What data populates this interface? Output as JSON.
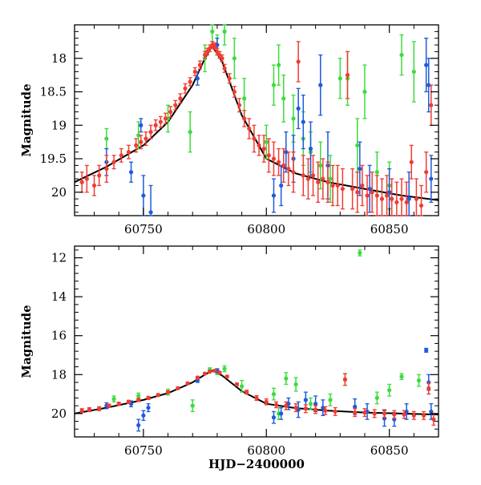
{
  "chart_data": [
    {
      "type": "scatter",
      "panel": "top",
      "xlabel": "",
      "ylabel": "Magnitude",
      "xlim": [
        60722,
        60870
      ],
      "ylim": [
        20.35,
        17.5
      ],
      "y_inverted": true,
      "x_ticks": [
        60750,
        60800,
        60850
      ],
      "x_tick_labels": [
        "60750",
        "60800",
        "60850"
      ],
      "y_ticks": [
        18,
        18.5,
        19,
        19.5,
        20
      ],
      "y_tick_labels": [
        "18",
        "18.5",
        "19",
        "19.5",
        "20"
      ],
      "grid": false,
      "legend": "none",
      "series_colors": {
        "green": "#3cdc3c",
        "blue": "#1e5adc",
        "red": "#f03c32",
        "model": "#000000"
      },
      "model_curve": {
        "x": [
          60722,
          60735,
          60750,
          60760,
          60770,
          60775,
          60778,
          60782,
          60790,
          60800,
          60812,
          60825,
          60840,
          60855,
          60870
        ],
        "y": [
          19.85,
          19.62,
          19.3,
          18.95,
          18.4,
          18.0,
          17.82,
          18.05,
          18.85,
          19.5,
          19.72,
          19.85,
          19.95,
          20.05,
          20.12
        ]
      },
      "series": [
        {
          "color": "green",
          "x": [
            60735,
            60748,
            60760,
            60769,
            60775,
            60778,
            60780,
            60783,
            60787,
            60791,
            60800,
            60803,
            60805,
            60807,
            60811,
            60815,
            60818,
            60822,
            60826,
            60830,
            60833,
            60837,
            60840,
            60845,
            60850,
            60855,
            60860
          ],
          "y": [
            19.2,
            19.15,
            18.9,
            19.1,
            18.0,
            17.6,
            17.8,
            17.6,
            18.0,
            18.6,
            19.25,
            18.4,
            18.1,
            18.6,
            18.9,
            19.2,
            19.4,
            19.6,
            19.8,
            18.3,
            18.3,
            19.3,
            18.5,
            19.7,
            19.9,
            17.95,
            18.2
          ],
          "yerr": [
            0.15,
            0.2,
            0.2,
            0.3,
            0.2,
            0.15,
            0.15,
            0.2,
            0.3,
            0.3,
            0.25,
            0.3,
            0.3,
            0.35,
            0.35,
            0.4,
            0.3,
            0.35,
            0.35,
            0.3,
            0.4,
            0.4,
            0.4,
            0.3,
            0.35,
            0.3,
            0.45
          ]
        },
        {
          "color": "blue",
          "x": [
            60735,
            60745,
            60749,
            60750,
            60753,
            60772,
            60780,
            60803,
            60806,
            60808,
            60811,
            60813,
            60815,
            60818,
            60822,
            60825,
            60838,
            60842,
            60850,
            60858,
            60865,
            60866,
            60867
          ],
          "y": [
            19.55,
            19.7,
            19.0,
            20.05,
            20.3,
            18.3,
            17.8,
            20.05,
            19.9,
            19.4,
            19.5,
            18.75,
            18.95,
            19.35,
            18.4,
            19.6,
            19.65,
            19.95,
            20.0,
            20.1,
            18.1,
            18.4,
            19.8
          ],
          "yerr": [
            0.2,
            0.15,
            0.1,
            0.3,
            0.4,
            0.1,
            0.1,
            0.25,
            0.3,
            0.3,
            0.35,
            0.3,
            0.4,
            0.4,
            0.45,
            0.5,
            0.4,
            0.35,
            0.35,
            0.4,
            0.4,
            0.4,
            0.35
          ]
        },
        {
          "color": "red",
          "x": [
            60725,
            60727,
            60730,
            60732,
            60735,
            60738,
            60741,
            60744,
            60747,
            60749,
            60751,
            60753,
            60755,
            60757,
            60759,
            60761,
            60763,
            60765,
            60767,
            60769,
            60771,
            60773,
            60775,
            60776,
            60777,
            60778,
            60779,
            60780,
            60781,
            60782,
            60783,
            60785,
            60787,
            60789,
            60791,
            60793,
            60795,
            60797,
            60799,
            60801,
            60803,
            60805,
            60807,
            60809,
            60811,
            60813,
            60815,
            60817,
            60819,
            60821,
            60823,
            60825,
            60827,
            60829,
            60831,
            60833,
            60835,
            60837,
            60839,
            60841,
            60843,
            60845,
            60847,
            60849,
            60851,
            60853,
            60855,
            60857,
            60859,
            60861,
            60863,
            60865,
            60867
          ],
          "y": [
            19.85,
            19.8,
            19.9,
            19.75,
            19.65,
            19.55,
            19.45,
            19.4,
            19.3,
            19.25,
            19.2,
            19.1,
            19.0,
            18.95,
            18.9,
            18.8,
            18.7,
            18.6,
            18.45,
            18.35,
            18.2,
            18.1,
            17.95,
            17.9,
            17.85,
            17.8,
            17.82,
            17.9,
            17.95,
            18.0,
            18.15,
            18.3,
            18.5,
            18.7,
            18.9,
            19.05,
            19.2,
            19.3,
            19.35,
            19.45,
            19.5,
            19.55,
            19.6,
            19.65,
            19.7,
            18.05,
            19.75,
            19.8,
            19.75,
            19.85,
            19.8,
            19.85,
            19.9,
            19.9,
            19.95,
            18.25,
            19.95,
            20.0,
            19.9,
            20.05,
            20.0,
            20.05,
            20.1,
            20.05,
            20.1,
            20.15,
            20.1,
            20.15,
            19.55,
            20.1,
            20.2,
            19.7,
            18.7
          ],
          "yerr": [
            0.15,
            0.2,
            0.15,
            0.15,
            0.2,
            0.1,
            0.1,
            0.1,
            0.1,
            0.1,
            0.1,
            0.1,
            0.08,
            0.08,
            0.08,
            0.08,
            0.07,
            0.07,
            0.07,
            0.06,
            0.06,
            0.06,
            0.05,
            0.05,
            0.05,
            0.05,
            0.05,
            0.05,
            0.05,
            0.05,
            0.06,
            0.07,
            0.08,
            0.1,
            0.12,
            0.15,
            0.2,
            0.15,
            0.2,
            0.25,
            0.25,
            0.2,
            0.25,
            0.25,
            0.3,
            0.3,
            0.3,
            0.3,
            0.3,
            0.3,
            0.3,
            0.3,
            0.3,
            0.3,
            0.3,
            0.35,
            0.3,
            0.3,
            0.3,
            0.3,
            0.3,
            0.3,
            0.3,
            0.3,
            0.3,
            0.3,
            0.3,
            0.3,
            0.25,
            0.3,
            0.3,
            0.3,
            0.3
          ]
        }
      ]
    },
    {
      "type": "scatter",
      "panel": "bottom",
      "xlabel": "HJD−2400000",
      "ylabel": "Magnitude",
      "xlim": [
        60722,
        60870
      ],
      "ylim": [
        21.2,
        11.4
      ],
      "y_inverted": true,
      "x_ticks": [
        60750,
        60800,
        60850
      ],
      "x_tick_labels": [
        "60750",
        "60800",
        "60850"
      ],
      "y_ticks": [
        12,
        14,
        16,
        18,
        20
      ],
      "y_tick_labels": [
        "12",
        "14",
        "16",
        "18",
        "20"
      ],
      "grid": false,
      "legend": "none",
      "series_colors": {
        "green": "#3cdc3c",
        "blue": "#1e5adc",
        "red": "#f03c32",
        "model": "#000000"
      },
      "model_curve": {
        "x": [
          60722,
          60735,
          60750,
          60760,
          60770,
          60775,
          60778,
          60782,
          60790,
          60800,
          60812,
          60825,
          60840,
          60855,
          60870
        ],
        "y": [
          20.0,
          19.7,
          19.3,
          18.95,
          18.4,
          18.0,
          17.8,
          18.05,
          18.85,
          19.5,
          19.72,
          19.85,
          19.95,
          20.0,
          20.05
        ]
      },
      "series": [
        {
          "color": "green",
          "x": [
            60738,
            60748,
            60760,
            60770,
            60777,
            60780,
            60783,
            60790,
            60803,
            60805,
            60808,
            60812,
            60818,
            60826,
            60832,
            60838,
            60845,
            60850,
            60855,
            60862
          ],
          "y": [
            19.25,
            19.1,
            18.9,
            19.6,
            17.75,
            17.9,
            17.7,
            18.6,
            19.0,
            20.0,
            18.2,
            18.5,
            19.5,
            19.3,
            18.25,
            11.75,
            19.2,
            18.8,
            18.1,
            18.3
          ],
          "yerr": [
            0.15,
            0.15,
            0.15,
            0.3,
            0.1,
            0.1,
            0.15,
            0.3,
            0.3,
            0.3,
            0.3,
            0.35,
            0.3,
            0.3,
            0.3,
            0.15,
            0.3,
            0.3,
            0.15,
            0.3
          ]
        },
        {
          "color": "blue",
          "x": [
            60735,
            60745,
            60748,
            60750,
            60752,
            60772,
            60780,
            60803,
            60806,
            60809,
            60813,
            60816,
            60820,
            60823,
            60836,
            60841,
            60848,
            60852,
            60857,
            60865,
            60866,
            60867
          ],
          "y": [
            19.6,
            19.5,
            20.6,
            20.1,
            19.7,
            18.3,
            17.8,
            20.2,
            20.0,
            19.5,
            19.8,
            19.3,
            19.5,
            19.7,
            19.65,
            19.9,
            20.25,
            20.3,
            19.9,
            16.75,
            18.4,
            19.9
          ],
          "yerr": [
            0.15,
            0.15,
            0.3,
            0.25,
            0.2,
            0.1,
            0.1,
            0.3,
            0.3,
            0.3,
            0.4,
            0.4,
            0.4,
            0.4,
            0.4,
            0.4,
            0.4,
            0.35,
            0.4,
            0.1,
            0.4,
            0.4
          ]
        },
        {
          "color": "red",
          "x": [
            60725,
            60728,
            60732,
            60736,
            60740,
            60744,
            60748,
            60752,
            60756,
            60760,
            60764,
            60768,
            60772,
            60775,
            60777,
            60779,
            60781,
            60784,
            60788,
            60792,
            60796,
            60800,
            60804,
            60808,
            60812,
            60816,
            60820,
            60824,
            60828,
            60832,
            60836,
            60840,
            60844,
            60848,
            60852,
            60856,
            60860,
            60864,
            60866,
            60868
          ],
          "y": [
            19.85,
            19.8,
            19.75,
            19.6,
            19.5,
            19.4,
            19.3,
            19.2,
            19.05,
            18.9,
            18.7,
            18.45,
            18.15,
            17.95,
            17.85,
            17.8,
            17.9,
            18.1,
            18.5,
            18.9,
            19.2,
            19.4,
            19.55,
            19.6,
            19.7,
            19.75,
            19.8,
            19.85,
            19.9,
            18.25,
            19.95,
            19.95,
            20.0,
            20.0,
            20.05,
            20.05,
            20.1,
            20.1,
            18.7,
            20.3
          ],
          "yerr": [
            0.1,
            0.1,
            0.1,
            0.08,
            0.08,
            0.08,
            0.08,
            0.08,
            0.07,
            0.07,
            0.06,
            0.06,
            0.06,
            0.05,
            0.05,
            0.05,
            0.05,
            0.06,
            0.07,
            0.1,
            0.12,
            0.15,
            0.15,
            0.2,
            0.2,
            0.2,
            0.2,
            0.2,
            0.2,
            0.3,
            0.2,
            0.2,
            0.2,
            0.2,
            0.2,
            0.2,
            0.2,
            0.2,
            0.3,
            0.3
          ]
        }
      ]
    }
  ]
}
